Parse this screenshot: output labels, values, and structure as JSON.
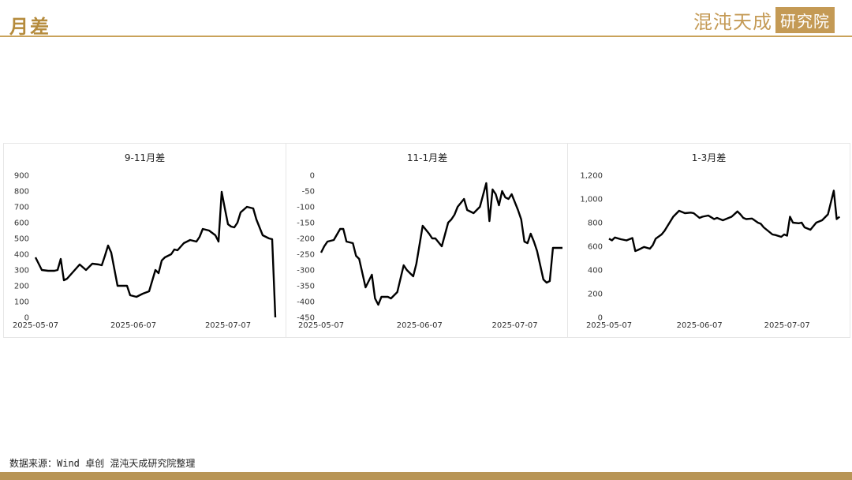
{
  "header": {
    "title": "月差",
    "logo_text": "混沌天成",
    "logo_box_text": "研究院"
  },
  "footer": {
    "source": "数据来源：Wind 卓创 混沌天成研究院整理"
  },
  "colors": {
    "accent": "#c49a55",
    "line": "#000000"
  },
  "chart_data": [
    {
      "type": "line",
      "title": "9-11月差",
      "xlabel": "",
      "ylabel": "",
      "x_ticks": [
        "2025-05-07",
        "2025-06-07",
        "2025-07-07"
      ],
      "x_range": [
        0,
        76
      ],
      "x_tick_positions": [
        0,
        31,
        61
      ],
      "y_ticks": [
        "0",
        "100",
        "200",
        "300",
        "400",
        "500",
        "600",
        "700",
        "800",
        "900"
      ],
      "ylim": [
        0,
        900
      ],
      "grid": false,
      "series": [
        {
          "x": [
            0,
            2,
            4,
            6,
            7,
            8,
            9,
            10,
            12,
            14,
            16,
            18,
            20,
            21,
            22,
            23,
            24,
            26,
            28,
            29,
            30,
            32,
            34,
            36,
            38,
            39,
            40,
            41,
            42,
            43,
            44,
            45,
            47,
            48,
            49,
            51,
            52,
            53,
            55,
            57,
            58,
            59,
            60,
            61,
            62,
            63,
            64,
            65,
            67,
            68,
            69,
            70,
            72,
            74,
            75,
            76
          ],
          "values": [
            380,
            300,
            295,
            295,
            300,
            370,
            235,
            245,
            290,
            335,
            300,
            340,
            335,
            330,
            390,
            455,
            410,
            200,
            200,
            200,
            140,
            130,
            150,
            165,
            300,
            280,
            360,
            380,
            390,
            400,
            430,
            425,
            470,
            480,
            490,
            480,
            510,
            560,
            550,
            520,
            480,
            795,
            690,
            590,
            575,
            570,
            600,
            665,
            700,
            695,
            690,
            620,
            520,
            500,
            495,
            0
          ]
        }
      ]
    },
    {
      "type": "line",
      "title": "11-1月差",
      "xlabel": "",
      "ylabel": "",
      "x_ticks": [
        "2025-05-07",
        "2025-06-07",
        "2025-07-07"
      ],
      "x_range": [
        0,
        76
      ],
      "x_tick_positions": [
        0,
        31,
        61
      ],
      "y_ticks": [
        "0",
        "-50",
        "-100",
        "-150",
        "-200",
        "-250",
        "-300",
        "-350",
        "-400",
        "-450"
      ],
      "ylim": [
        -450,
        0
      ],
      "grid": false,
      "series": [
        {
          "x": [
            0,
            1,
            2,
            4,
            6,
            7,
            8,
            10,
            11,
            12,
            14,
            15,
            16,
            17,
            18,
            19,
            21,
            22,
            24,
            26,
            27,
            28,
            29,
            30,
            32,
            34,
            35,
            36,
            38,
            40,
            41,
            42,
            43,
            45,
            46,
            48,
            50,
            52,
            53,
            54,
            55,
            56,
            57,
            58,
            59,
            60,
            62,
            63,
            64,
            65,
            66,
            67,
            68,
            70,
            71,
            72,
            73,
            74,
            75,
            76
          ],
          "values": [
            -245,
            -225,
            -210,
            -205,
            -170,
            -170,
            -210,
            -215,
            -255,
            -265,
            -355,
            -335,
            -315,
            -390,
            -410,
            -385,
            -385,
            -390,
            -370,
            -285,
            -300,
            -310,
            -320,
            -280,
            -160,
            -185,
            -200,
            -200,
            -225,
            -150,
            -140,
            -125,
            -100,
            -75,
            -110,
            -120,
            -100,
            -25,
            -145,
            -45,
            -60,
            -95,
            -50,
            -70,
            -75,
            -60,
            -110,
            -140,
            -210,
            -215,
            -185,
            -210,
            -240,
            -330,
            -340,
            -335,
            -230,
            -230,
            -230,
            -230
          ]
        }
      ]
    },
    {
      "type": "line",
      "title": "1-3月差",
      "xlabel": "",
      "ylabel": "",
      "x_ticks": [
        "2025-05-07",
        "2025-06-07",
        "2025-07-07"
      ],
      "x_range": [
        0,
        80
      ],
      "x_tick_positions": [
        0,
        31,
        61
      ],
      "y_ticks": [
        "0",
        "200",
        "400",
        "600",
        "800",
        "1,000",
        "1,200"
      ],
      "ylim": [
        0,
        1200
      ],
      "grid": false,
      "series": [
        {
          "x": [
            0,
            1,
            2,
            4,
            6,
            8,
            9,
            10,
            12,
            14,
            15,
            16,
            18,
            19,
            21,
            22,
            24,
            26,
            28,
            29,
            31,
            32,
            34,
            35,
            36,
            37,
            39,
            40,
            42,
            44,
            45,
            46,
            47,
            49,
            51,
            52,
            53,
            54,
            55,
            56,
            57,
            59,
            60,
            61,
            62,
            63,
            65,
            66,
            67,
            69,
            71,
            72,
            73,
            75,
            77,
            78,
            79
          ],
          "values": [
            665,
            650,
            675,
            660,
            650,
            670,
            560,
            570,
            595,
            580,
            610,
            665,
            700,
            730,
            810,
            850,
            900,
            880,
            885,
            880,
            840,
            850,
            860,
            845,
            830,
            840,
            820,
            830,
            850,
            895,
            870,
            840,
            830,
            835,
            800,
            790,
            760,
            740,
            720,
            700,
            695,
            680,
            700,
            690,
            850,
            800,
            795,
            800,
            760,
            740,
            800,
            810,
            820,
            870,
            1070,
            830,
            850
          ]
        }
      ]
    }
  ]
}
